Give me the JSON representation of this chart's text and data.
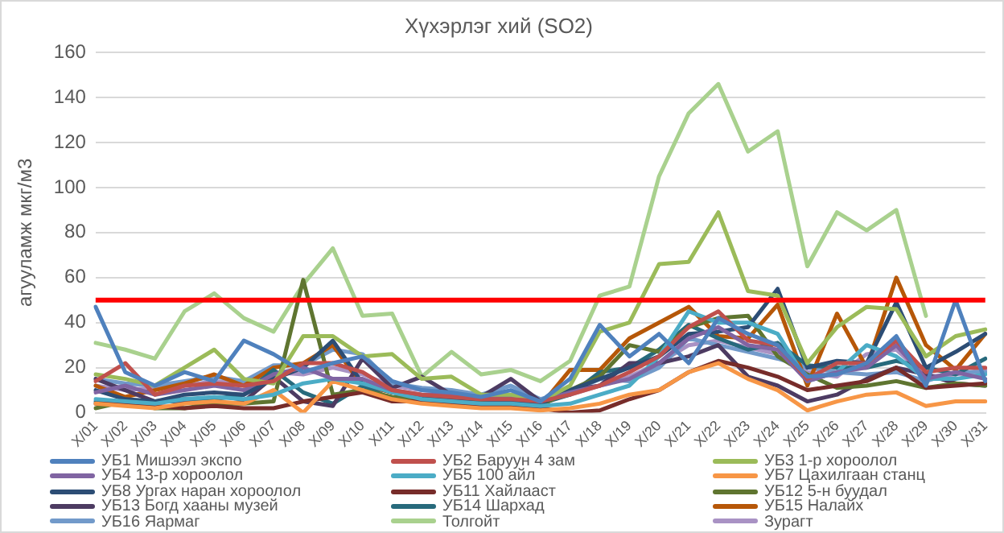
{
  "chart_data": {
    "type": "line",
    "title": "Хүхэрлэг хий (SO2)",
    "ylabel": "агууламж мкг/м3",
    "categories": [
      "X/01",
      "X/02",
      "X/03",
      "X/04",
      "X/05",
      "X/06",
      "X/07",
      "X/08",
      "X/09",
      "X/10",
      "X/11",
      "X/12",
      "X/13",
      "X/14",
      "X/15",
      "X/16",
      "X/17",
      "X/18",
      "X/19",
      "X/20",
      "X/21",
      "X/22",
      "X/23",
      "X/24",
      "X/25",
      "X/26",
      "X/27",
      "X/28",
      "X/29",
      "X/30",
      "X/31"
    ],
    "ylim": [
      0,
      160
    ],
    "yticks": [
      0,
      20,
      40,
      60,
      80,
      100,
      120,
      140,
      160
    ],
    "grid": "y",
    "legend": "bottom",
    "marker": "none",
    "line_style": "solid",
    "ref_lines": [
      {
        "axis": "y",
        "value": 50,
        "color": "#ff0000"
      }
    ],
    "series": [
      {
        "name": "УБ1 Мишээл  экспо",
        "color": "#4f81bd",
        "values": [
          47,
          18,
          12,
          18,
          14,
          32,
          26,
          18,
          22,
          25,
          14,
          10,
          9,
          7,
          10,
          5,
          15,
          39,
          25,
          35,
          22,
          42,
          35,
          30,
          16,
          17,
          22,
          34,
          12,
          50,
          14
        ]
      },
      {
        "name": "УБ2 Баруун 4 зам",
        "color": "#c0504d",
        "values": [
          14,
          22,
          8,
          12,
          13,
          12,
          14,
          22,
          22,
          18,
          10,
          8,
          7,
          6,
          6,
          5,
          8,
          12,
          18,
          25,
          38,
          45,
          32,
          30,
          15,
          22,
          22,
          32,
          18,
          20,
          20
        ]
      },
      {
        "name": "УБ3 1-р хороолол",
        "color": "#9bbb59",
        "values": [
          17,
          15,
          12,
          20,
          28,
          15,
          13,
          34,
          34,
          25,
          26,
          15,
          16,
          8,
          8,
          5,
          12,
          36,
          40,
          66,
          67,
          89,
          54,
          52,
          22,
          38,
          47,
          46,
          25,
          34,
          37
        ]
      },
      {
        "name": "УБ4 13-р хороолол",
        "color": "#8064a2",
        "values": [
          9,
          12,
          8,
          10,
          12,
          10,
          17,
          20,
          15,
          15,
          10,
          8,
          8,
          6,
          7,
          5,
          9,
          12,
          15,
          22,
          33,
          38,
          30,
          28,
          14,
          18,
          20,
          30,
          15,
          18,
          15
        ]
      },
      {
        "name": "УБ5 100 айл",
        "color": "#4bacc6",
        "values": [
          6,
          5,
          4,
          6,
          7,
          6,
          8,
          13,
          15,
          13,
          9,
          6,
          5,
          4,
          4,
          3,
          4,
          8,
          12,
          25,
          45,
          40,
          40,
          35,
          14,
          18,
          30,
          25,
          15,
          15,
          17
        ]
      },
      {
        "name": "УБ7 Цахилгаан  станц",
        "color": "#f79646",
        "values": [
          4,
          3,
          2,
          4,
          5,
          4,
          10,
          0,
          14,
          10,
          6,
          4,
          3,
          2,
          2,
          1,
          2,
          4,
          8,
          10,
          18,
          22,
          15,
          10,
          1,
          5,
          8,
          9,
          3,
          5,
          5
        ]
      },
      {
        "name": "УБ8 Ургах наран хороолол",
        "color": "#2c4d75",
        "values": [
          10,
          6,
          5,
          8,
          9,
          8,
          15,
          20,
          32,
          13,
          9,
          7,
          6,
          4,
          5,
          4,
          10,
          15,
          20,
          25,
          35,
          36,
          38,
          55,
          20,
          23,
          22,
          49,
          20,
          27,
          35
        ]
      },
      {
        "name": "УБ11 Хайлааст",
        "color": "#772c2a",
        "values": [
          4,
          4,
          3,
          2,
          3,
          2,
          2,
          5,
          7,
          9,
          5,
          5,
          4,
          3,
          3,
          2,
          0,
          1,
          6,
          10,
          18,
          23,
          20,
          16,
          10,
          12,
          14,
          20,
          11,
          12,
          13
        ]
      },
      {
        "name": "УБ12 5-н буудал",
        "color": "#5f7530",
        "values": [
          2,
          5,
          2,
          2,
          4,
          4,
          5,
          59,
          8,
          10,
          7,
          6,
          5,
          5,
          4,
          3,
          10,
          16,
          30,
          27,
          38,
          42,
          43,
          25,
          17,
          11,
          12,
          14,
          11,
          13,
          12
        ]
      },
      {
        "name": "УБ13 Богд хааны музей",
        "color": "#4d3b62",
        "values": [
          15,
          10,
          5,
          5,
          3,
          5,
          16,
          5,
          3,
          24,
          11,
          16,
          8,
          7,
          15,
          5,
          10,
          12,
          22,
          22,
          25,
          30,
          16,
          12,
          5,
          8,
          15,
          20,
          17,
          13,
          12
        ]
      },
      {
        "name": "УБ14 Шархад",
        "color": "#276a7c",
        "values": [
          5,
          4,
          5,
          6,
          6,
          8,
          19,
          9,
          4,
          12,
          6,
          5,
          4,
          3,
          5,
          4,
          8,
          18,
          20,
          28,
          39,
          33,
          28,
          31,
          21,
          20,
          20,
          23,
          20,
          17,
          24
        ]
      },
      {
        "name": "УБ15 Налайх",
        "color": "#b65708",
        "values": [
          12,
          7,
          10,
          13,
          17,
          12,
          20,
          22,
          30,
          12,
          9,
          7,
          6,
          5,
          4,
          3,
          19,
          19,
          33,
          40,
          47,
          34,
          33,
          48,
          12,
          44,
          20,
          60,
          30,
          19,
          35
        ]
      },
      {
        "name": "УБ16 Яармаг",
        "color": "#729aca",
        "values": [
          15,
          13,
          12,
          14,
          16,
          14,
          21,
          21,
          28,
          26,
          13,
          11,
          10,
          8,
          12,
          6,
          9,
          15,
          14,
          20,
          33,
          30,
          27,
          24,
          20,
          18,
          17,
          18,
          14,
          18,
          18
        ]
      },
      {
        "name": "Толгойт",
        "color": "#a9d18e",
        "values": [
          31,
          28,
          24,
          45,
          53,
          42,
          36,
          57,
          73,
          43,
          44,
          16,
          27,
          17,
          19,
          14,
          23,
          52,
          56,
          105,
          133,
          146,
          116,
          125,
          65,
          89,
          81,
          90,
          43,
          null,
          null
        ]
      },
      {
        "name": "Зурагт",
        "color": "#a992c4",
        "values": [
          12,
          10,
          11,
          12,
          14,
          13,
          18,
          17,
          20,
          17,
          12,
          10,
          9,
          7,
          8,
          6,
          8,
          12,
          16,
          22,
          30,
          32,
          29,
          26,
          18,
          16,
          26,
          28,
          16,
          17,
          19
        ]
      }
    ]
  }
}
